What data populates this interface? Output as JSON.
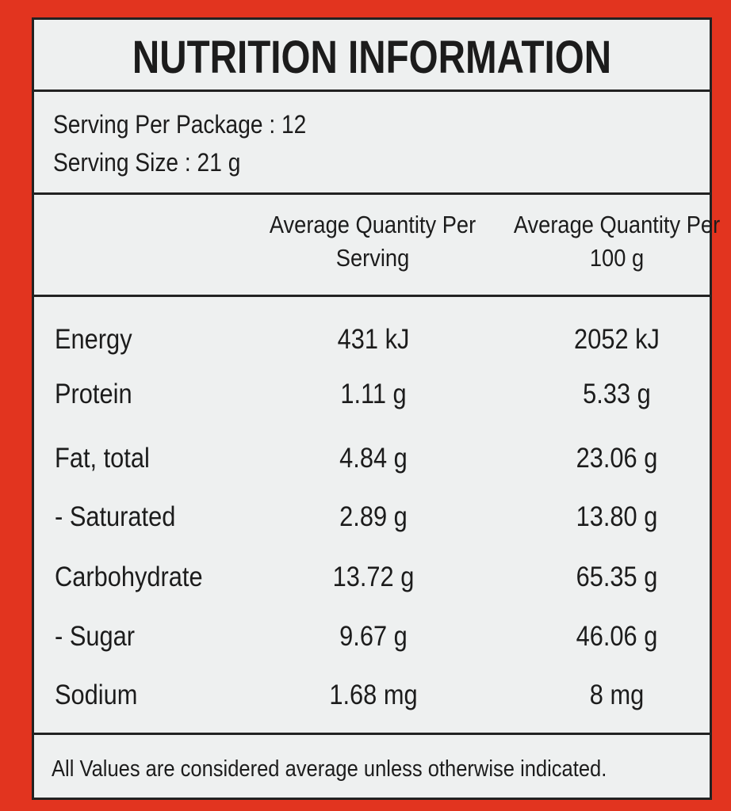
{
  "header": {
    "title": "NUTRITION INFORMATION"
  },
  "serving": [
    "Serving Per Package : 12",
    "Serving Size : 21 g"
  ],
  "table": {
    "columns": [
      "Average Quantity Per Serving",
      "Average Quantity Per 100 g"
    ],
    "rows": [
      [
        "Energy",
        "431 kJ",
        "2052 kJ"
      ],
      [
        "Protein",
        "1.11 g",
        "5.33 g"
      ],
      [
        "Fat, total",
        "4.84 g",
        "23.06 g"
      ],
      [
        "- Saturated",
        "2.89 g",
        "13.80 g"
      ],
      [
        "Carbohydrate",
        "13.72 g",
        "65.35 g"
      ],
      [
        "- Sugar",
        "9.67 g",
        "46.06 g"
      ],
      [
        "Sodium",
        "1.68 mg",
        "8 mg"
      ]
    ]
  },
  "footer": "All Values are considered average unless otherwise indicated."
}
